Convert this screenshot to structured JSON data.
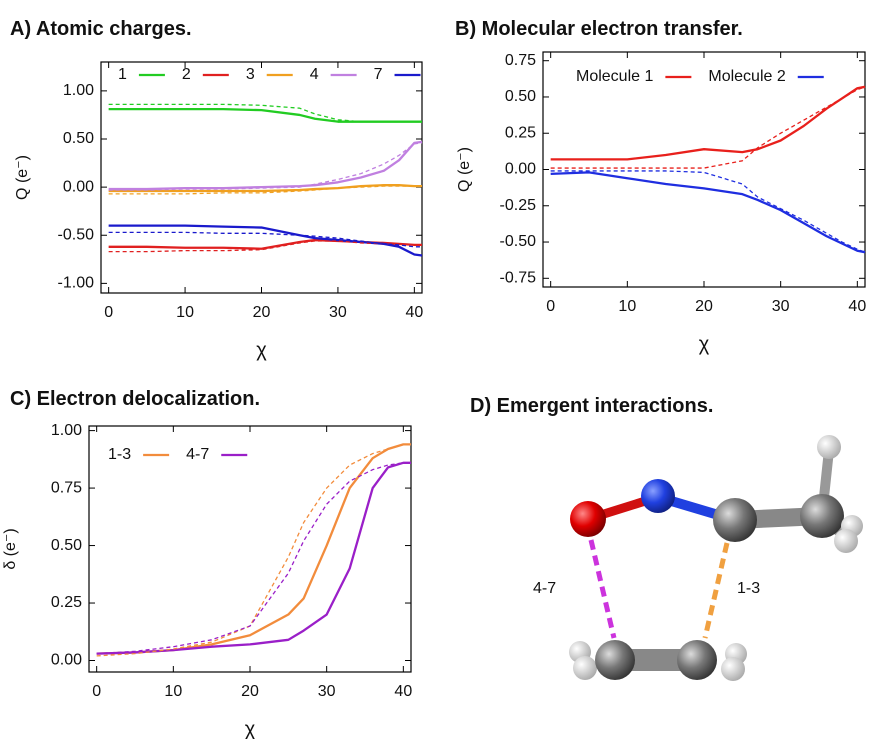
{
  "chart_data": [
    {
      "type": "line",
      "title": "A) Atomic charges.",
      "xlabel": "χ",
      "ylabel": "Q (e⁻)",
      "x": [
        0,
        5,
        10,
        15,
        20,
        25,
        27,
        30,
        33,
        36,
        38,
        40,
        41
      ],
      "xlim": [
        -1,
        41
      ],
      "xticks": [
        0,
        10,
        20,
        30,
        40
      ],
      "ylim": [
        -1.1,
        1.3
      ],
      "yticks": [
        {
          "value": 1,
          "label": "1.00"
        },
        {
          "value": 0.5,
          "label": "0.50"
        },
        {
          "value": 0,
          "label": "0.00"
        },
        {
          "value": -0.5,
          "label": "-0.50"
        },
        {
          "value": -1,
          "label": "-1.00"
        }
      ],
      "series": [
        {
          "name": "1",
          "color": "#22cc22",
          "values": [
            0.81,
            0.81,
            0.81,
            0.81,
            0.8,
            0.75,
            0.71,
            0.68,
            0.68,
            0.68,
            0.68,
            0.68,
            0.68
          ]
        },
        {
          "name": "2",
          "color": "#e02020",
          "values": [
            -0.62,
            -0.62,
            -0.63,
            -0.63,
            -0.64,
            -0.57,
            -0.55,
            -0.56,
            -0.57,
            -0.58,
            -0.59,
            -0.6,
            -0.6
          ]
        },
        {
          "name": "3",
          "color": "#f0a020",
          "values": [
            -0.04,
            -0.04,
            -0.04,
            -0.04,
            -0.04,
            -0.03,
            -0.02,
            -0.01,
            0.01,
            0.02,
            0.02,
            0.01,
            0.01
          ]
        },
        {
          "name": "4",
          "color": "#c080e0",
          "values": [
            -0.02,
            -0.02,
            -0.01,
            -0.01,
            0.0,
            0.01,
            0.02,
            0.05,
            0.1,
            0.17,
            0.28,
            0.46,
            0.47
          ]
        },
        {
          "name": "7",
          "color": "#1a1acc",
          "values": [
            -0.4,
            -0.4,
            -0.4,
            -0.41,
            -0.42,
            -0.5,
            -0.53,
            -0.55,
            -0.57,
            -0.59,
            -0.62,
            -0.7,
            -0.71
          ]
        },
        {
          "color": "#22cc22",
          "dash": true,
          "values": [
            0.86,
            0.86,
            0.86,
            0.86,
            0.85,
            0.82,
            0.76,
            0.7,
            0.68,
            0.68,
            0.68,
            0.68,
            0.68
          ]
        },
        {
          "color": "#e02020",
          "dash": true,
          "values": [
            -0.67,
            -0.67,
            -0.66,
            -0.66,
            -0.65,
            -0.58,
            -0.56,
            -0.56,
            -0.58,
            -0.59,
            -0.6,
            -0.6,
            -0.6
          ]
        },
        {
          "color": "#f0a020",
          "dash": true,
          "values": [
            -0.07,
            -0.07,
            -0.07,
            -0.06,
            -0.06,
            -0.04,
            -0.03,
            -0.01,
            0.0,
            0.01,
            0.01,
            0.01,
            0.01
          ]
        },
        {
          "color": "#c080e0",
          "dash": true,
          "values": [
            -0.03,
            -0.03,
            -0.02,
            -0.02,
            -0.01,
            0.0,
            0.03,
            0.08,
            0.14,
            0.24,
            0.33,
            0.45,
            0.46
          ]
        },
        {
          "color": "#1a1acc",
          "dash": true,
          "values": [
            -0.47,
            -0.47,
            -0.47,
            -0.48,
            -0.48,
            -0.5,
            -0.51,
            -0.53,
            -0.56,
            -0.59,
            -0.6,
            -0.62,
            -0.62
          ]
        }
      ]
    },
    {
      "type": "line",
      "title": "B) Molecular electron transfer.",
      "xlabel": "χ",
      "ylabel": "Q (e⁻)",
      "x": [
        0,
        5,
        10,
        15,
        20,
        25,
        27,
        30,
        33,
        36,
        38,
        40,
        41
      ],
      "xlim": [
        -1,
        41
      ],
      "xticks": [
        0,
        10,
        20,
        30,
        40
      ],
      "ylim": [
        -0.81,
        0.81
      ],
      "yticks": [
        0.75,
        {
          "value": 0.5,
          "label": "0.50"
        },
        0.25,
        {
          "value": 0,
          "label": "0.00"
        },
        -0.25,
        {
          "value": -0.5,
          "label": "-0.50"
        },
        -0.75
      ],
      "series": [
        {
          "name": "Molecule 1",
          "color": "#e8201c",
          "values": [
            0.07,
            0.07,
            0.07,
            0.1,
            0.14,
            0.12,
            0.14,
            0.2,
            0.3,
            0.42,
            0.49,
            0.56,
            0.57
          ]
        },
        {
          "name": "Molecule 2",
          "color": "#1f2ee0",
          "values": [
            -0.03,
            -0.02,
            -0.06,
            -0.1,
            -0.13,
            -0.17,
            -0.21,
            -0.28,
            -0.37,
            -0.46,
            -0.51,
            -0.56,
            -0.57
          ]
        },
        {
          "color": "#e8201c",
          "dash": true,
          "values": [
            0.01,
            0.01,
            0.01,
            0.01,
            0.01,
            0.06,
            0.15,
            0.25,
            0.34,
            0.43,
            0.49,
            0.55,
            0.57
          ]
        },
        {
          "color": "#1f2ee0",
          "dash": true,
          "values": [
            -0.01,
            -0.01,
            -0.01,
            -0.01,
            -0.02,
            -0.1,
            -0.19,
            -0.27,
            -0.35,
            -0.44,
            -0.5,
            -0.55,
            -0.57
          ]
        }
      ]
    },
    {
      "type": "line",
      "title": "C) Electron delocalization.",
      "xlabel": "χ",
      "ylabel": "δ (e⁻)",
      "x": [
        0,
        5,
        10,
        15,
        20,
        25,
        27,
        30,
        33,
        36,
        38,
        40,
        41
      ],
      "xlim": [
        -1,
        41
      ],
      "xticks": [
        0,
        10,
        20,
        30,
        40
      ],
      "ylim": [
        -0.05,
        1.02
      ],
      "yticks": [
        {
          "value": 0,
          "label": "0.00"
        },
        0.25,
        {
          "value": 0.5,
          "label": "0.50"
        },
        0.75,
        {
          "value": 1,
          "label": "1.00"
        }
      ],
      "series": [
        {
          "name": "1-3",
          "color": "#f28c3c",
          "values": [
            0.03,
            0.035,
            0.045,
            0.07,
            0.11,
            0.2,
            0.27,
            0.5,
            0.75,
            0.88,
            0.92,
            0.94,
            0.94
          ]
        },
        {
          "name": "4-7",
          "color": "#9a1fc8",
          "values": [
            0.03,
            0.035,
            0.045,
            0.06,
            0.07,
            0.09,
            0.13,
            0.2,
            0.4,
            0.75,
            0.84,
            0.86,
            0.86
          ]
        },
        {
          "color": "#f28c3c",
          "dash": true,
          "values": [
            0.02,
            0.03,
            0.05,
            0.08,
            0.15,
            0.45,
            0.6,
            0.75,
            0.85,
            0.9,
            0.92,
            0.94,
            0.94
          ]
        },
        {
          "color": "#9a1fc8",
          "dash": true,
          "values": [
            0.03,
            0.04,
            0.06,
            0.09,
            0.15,
            0.38,
            0.52,
            0.68,
            0.78,
            0.83,
            0.85,
            0.86,
            0.86
          ]
        }
      ]
    }
  ],
  "diagram": {
    "title": "D) Emergent interactions.",
    "labels": [
      "4-7",
      "1-3"
    ]
  }
}
